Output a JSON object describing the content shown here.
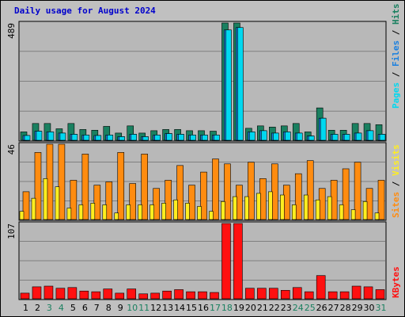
{
  "title": "Daily usage for August 2024",
  "colors": {
    "background": "#c0c0c0",
    "plot": "#b8b8b8",
    "title": "#0000cc",
    "pages": "#00d8f0",
    "files": "#1a80e0",
    "hits": "#1a8060",
    "sites": "#ffee20",
    "visits": "#ff8c10",
    "kbytes": "#ff1010",
    "weekend_label": "#1a8060",
    "weekday_label": "#000000"
  },
  "chart_data": [
    {
      "type": "bar",
      "panel": "top",
      "y_axis_label": "489",
      "ylim": [
        0,
        489
      ],
      "legend": {
        "pages": "Pages",
        "files": "Files",
        "hits": "Hits",
        "separator": " / "
      },
      "legend_placement": "right",
      "x_categories": [
        "1",
        "2",
        "3",
        "4",
        "5",
        "6",
        "7",
        "8",
        "9",
        "10",
        "11",
        "12",
        "13",
        "14",
        "15",
        "16",
        "17",
        "18",
        "19",
        "20",
        "21",
        "22",
        "23",
        "24",
        "25",
        "26",
        "27",
        "28",
        "29",
        "30",
        "31"
      ],
      "weekend_days": [
        "3",
        "4",
        "10",
        "11",
        "17",
        "18",
        "24",
        "25",
        "31"
      ],
      "series": [
        {
          "name": "Hits",
          "values": [
            35,
            70,
            70,
            48,
            70,
            45,
            42,
            58,
            30,
            60,
            30,
            40,
            45,
            45,
            40,
            40,
            38,
            489,
            489,
            50,
            60,
            55,
            60,
            70,
            35,
            135,
            42,
            42,
            70,
            70,
            65
          ]
        },
        {
          "name": "Files",
          "values": [
            20,
            38,
            35,
            30,
            25,
            22,
            20,
            22,
            15,
            25,
            15,
            22,
            28,
            25,
            22,
            22,
            22,
            460,
            470,
            35,
            40,
            30,
            35,
            30,
            18,
            92,
            25,
            25,
            30,
            40,
            25
          ]
        },
        {
          "name": "Pages",
          "values": [
            20,
            38,
            35,
            30,
            25,
            22,
            20,
            22,
            15,
            25,
            15,
            22,
            28,
            25,
            22,
            22,
            22,
            460,
            470,
            35,
            40,
            30,
            35,
            30,
            18,
            92,
            25,
            25,
            30,
            40,
            25
          ]
        }
      ]
    },
    {
      "type": "bar",
      "panel": "middle",
      "y_axis_label": "46",
      "ylim": [
        0,
        46
      ],
      "legend": {
        "sites": "Sites",
        "visits": "Visits",
        "separator": " / "
      },
      "legend_placement": "right",
      "series": [
        {
          "name": "Visits",
          "values": [
            17,
            41,
            46,
            46,
            24,
            40,
            21,
            23,
            41,
            22,
            40,
            19,
            24,
            33,
            21,
            29,
            37,
            34,
            21,
            35,
            25,
            34,
            21,
            28,
            36,
            19,
            24,
            31,
            35,
            19,
            24
          ]
        },
        {
          "name": "Sites",
          "values": [
            5,
            13,
            25,
            20,
            7,
            9,
            10,
            9,
            4,
            9,
            9,
            9,
            10,
            12,
            10,
            8,
            5,
            11,
            14,
            14,
            16,
            17,
            15,
            9,
            15,
            12,
            14,
            9,
            6,
            11,
            4
          ]
        }
      ]
    },
    {
      "type": "bar",
      "panel": "bottom",
      "y_axis_label": "107",
      "ylim": [
        0,
        107
      ],
      "legend": {
        "kbytes": "KBytes"
      },
      "legend_placement": "right",
      "series": [
        {
          "name": "KBytes",
          "values": [
            8,
            17,
            18,
            15,
            16,
            11,
            10,
            14,
            8,
            14,
            7,
            8,
            11,
            13,
            10,
            10,
            9,
            107,
            107,
            15,
            15,
            15,
            12,
            16,
            10,
            33,
            10,
            10,
            18,
            17,
            13
          ]
        }
      ]
    }
  ]
}
